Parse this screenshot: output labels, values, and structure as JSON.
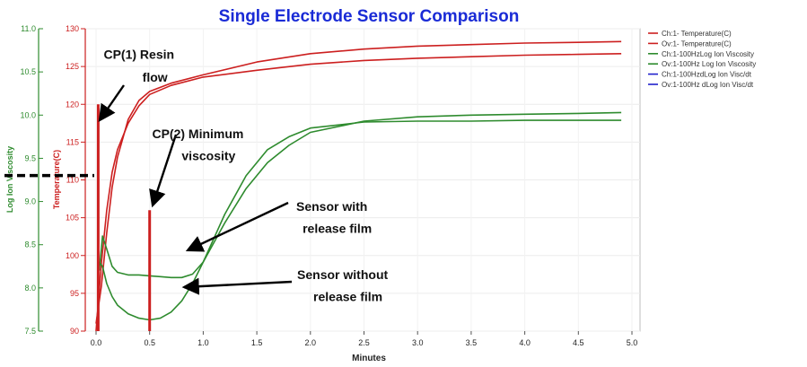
{
  "chart_data": {
    "type": "line",
    "title": "Single Electrode Sensor Comparison",
    "xlabel": "Minutes",
    "x_ticks": [
      "0.0",
      "0.5",
      "1.0",
      "1.5",
      "2.0",
      "2.5",
      "3.0",
      "3.5",
      "4.0",
      "4.5",
      "5.0"
    ],
    "xlim": [
      0,
      5.0
    ],
    "y_left": {
      "label": "Log Ion Viscosity",
      "ticks": [
        "11.0",
        "10.5",
        "10.0",
        "9.5",
        "9.0",
        "8.5",
        "8.0",
        "7.5"
      ],
      "ylim": [
        7.5,
        11.0
      ],
      "color": "#2e8b2e"
    },
    "y_right": {
      "label": "Temperature(C)",
      "ticks": [
        "130",
        "125",
        "120",
        "115",
        "110",
        "105",
        "100",
        "95",
        "90"
      ],
      "ylim": [
        90,
        130
      ],
      "color": "#cc1f1f"
    },
    "legend_position": "top-right",
    "legend": [
      {
        "label": "Ch:1- Temperature(C)",
        "color": "#cc1f1f"
      },
      {
        "label": "Ov:1- Temperature(C)",
        "color": "#cc1f1f"
      },
      {
        "label": "Ch:1-100HzLog Ion Viscosity",
        "color": "#2e8b2e"
      },
      {
        "label": "Ov:1-100Hz Log Ion Viscosity",
        "color": "#2e8b2e"
      },
      {
        "label": "Ch:1-100HzdLog Ion Visc/dt",
        "color": "#2222cc"
      },
      {
        "label": "Ov:1-100Hz dLog Ion Visc/dt",
        "color": "#2222cc"
      }
    ],
    "series": [
      {
        "name": "Ch:1- Temperature(C)",
        "axis": "right",
        "color": "#cc1f1f",
        "x": [
          0.0,
          0.05,
          0.1,
          0.15,
          0.2,
          0.3,
          0.4,
          0.5,
          0.7,
          1.0,
          1.5,
          2.0,
          2.5,
          3.0,
          3.5,
          4.0,
          4.5,
          4.9
        ],
        "y": [
          91,
          96,
          103,
          109,
          113,
          118,
          120.5,
          121.7,
          122.8,
          123.9,
          125.6,
          126.7,
          127.3,
          127.7,
          127.9,
          128.1,
          128.2,
          128.3
        ]
      },
      {
        "name": "Ov:1- Temperature(C)",
        "axis": "right",
        "color": "#cc1f1f",
        "x": [
          0.0,
          0.05,
          0.1,
          0.15,
          0.2,
          0.3,
          0.4,
          0.5,
          0.7,
          1.0,
          1.5,
          2.0,
          2.5,
          3.0,
          3.5,
          4.0,
          4.5,
          4.9
        ],
        "y": [
          90,
          99,
          106,
          111,
          114,
          117.5,
          119.8,
          121.3,
          122.5,
          123.6,
          124.5,
          125.3,
          125.8,
          126.1,
          126.3,
          126.5,
          126.6,
          126.7
        ]
      },
      {
        "name": "Ch:1-100HzLog Ion Viscosity",
        "axis": "left",
        "color": "#2e8b2e",
        "x": [
          0.03,
          0.06,
          0.1,
          0.15,
          0.2,
          0.3,
          0.4,
          0.5,
          0.6,
          0.7,
          0.8,
          0.9,
          1.0,
          1.2,
          1.4,
          1.6,
          1.8,
          2.0,
          2.5,
          3.0,
          3.5,
          4.0,
          4.5,
          4.9
        ],
        "y": [
          8.2,
          8.6,
          8.45,
          8.25,
          8.18,
          8.15,
          8.15,
          8.14,
          8.13,
          8.12,
          8.12,
          8.16,
          8.3,
          8.75,
          9.15,
          9.45,
          9.65,
          9.8,
          9.93,
          9.98,
          10.0,
          10.01,
          10.02,
          10.03
        ]
      },
      {
        "name": "Ov:1-100Hz Log Ion Viscosity",
        "axis": "left",
        "color": "#2e8b2e",
        "x": [
          0.03,
          0.06,
          0.1,
          0.15,
          0.2,
          0.3,
          0.4,
          0.5,
          0.6,
          0.7,
          0.8,
          0.9,
          1.0,
          1.2,
          1.4,
          1.6,
          1.8,
          2.0,
          2.5,
          3.0,
          3.5,
          4.0,
          4.5,
          4.9
        ],
        "y": [
          8.3,
          8.25,
          8.05,
          7.9,
          7.8,
          7.7,
          7.65,
          7.63,
          7.65,
          7.72,
          7.85,
          8.05,
          8.3,
          8.85,
          9.3,
          9.6,
          9.75,
          9.85,
          9.92,
          9.93,
          9.93,
          9.94,
          9.94,
          9.94
        ]
      },
      {
        "name": "CP(1) Resin flow marker",
        "axis": "right",
        "color": "#cc1f1f",
        "x": [
          0.02,
          0.02
        ],
        "y": [
          90,
          120
        ]
      },
      {
        "name": "CP(2) Minimum viscosity marker",
        "axis": "right",
        "color": "#cc1f1f",
        "x": [
          0.5,
          0.5
        ],
        "y": [
          90,
          106
        ]
      }
    ],
    "annotations": [
      {
        "label": "CP(1) Resin",
        "x": 0.4,
        "y_right": 126.0
      },
      {
        "label": "flow",
        "x": 0.55,
        "y_right": 123.0
      },
      {
        "label": "CP(2) Minimum",
        "x": 0.95,
        "y_right": 115.5
      },
      {
        "label": "viscosity",
        "x": 1.05,
        "y_right": 112.6
      },
      {
        "label": "Sensor with",
        "x": 2.2,
        "y_right": 105.9
      },
      {
        "label": "release film",
        "x": 2.25,
        "y_right": 103.0
      },
      {
        "label": "Sensor without",
        "x": 2.3,
        "y_right": 96.9
      },
      {
        "label": "release film",
        "x": 2.35,
        "y_right": 94.0
      }
    ],
    "reference_value_y_left": 9.3
  }
}
